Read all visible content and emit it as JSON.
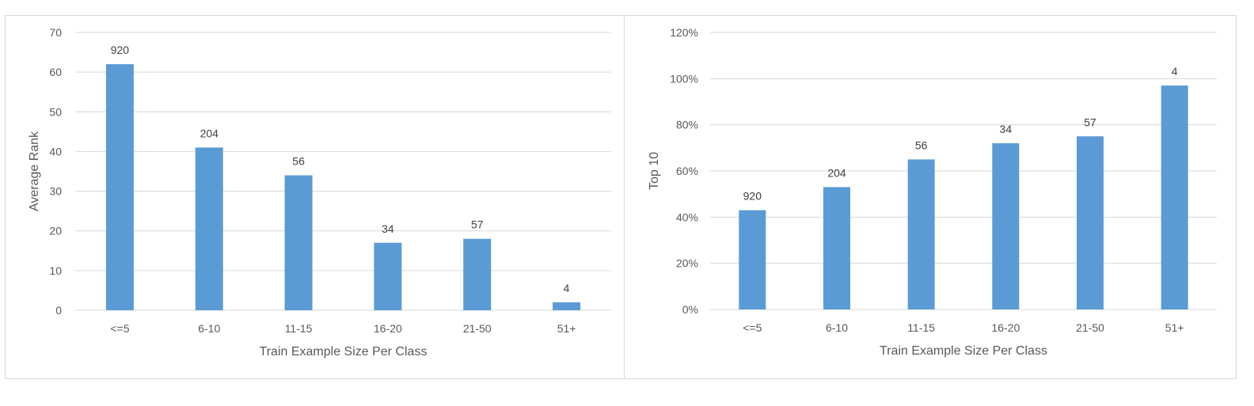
{
  "chart_data": [
    {
      "type": "bar",
      "categories": [
        "<=5",
        "6-10",
        "11-15",
        "16-20",
        "21-50",
        "51+"
      ],
      "values": [
        62,
        41,
        34,
        17,
        18,
        2
      ],
      "data_labels": [
        "920",
        "204",
        "56",
        "34",
        "57",
        "4"
      ],
      "xlabel": "Train Example Size Per Class",
      "ylabel": "Average Rank",
      "ylim": [
        0,
        70
      ],
      "yticks": [
        0,
        10,
        20,
        30,
        40,
        50,
        60,
        70
      ],
      "ytick_labels": [
        "0",
        "10",
        "20",
        "30",
        "40",
        "50",
        "60",
        "70"
      ],
      "grid": true,
      "color": "#5b9bd5"
    },
    {
      "type": "bar",
      "categories": [
        "<=5",
        "6-10",
        "11-15",
        "16-20",
        "21-50",
        "51+"
      ],
      "values": [
        0.43,
        0.53,
        0.65,
        0.72,
        0.75,
        0.97
      ],
      "data_labels": [
        "920",
        "204",
        "56",
        "34",
        "57",
        "4"
      ],
      "xlabel": "Train Example Size Per Class",
      "ylabel": "Top 10",
      "ylim": [
        0,
        1.2
      ],
      "yticks": [
        0,
        0.2,
        0.4,
        0.6,
        0.8,
        1.0,
        1.2
      ],
      "ytick_labels": [
        "0%",
        "20%",
        "40%",
        "60%",
        "80%",
        "100%",
        "120%"
      ],
      "grid": true,
      "color": "#5b9bd5"
    }
  ]
}
